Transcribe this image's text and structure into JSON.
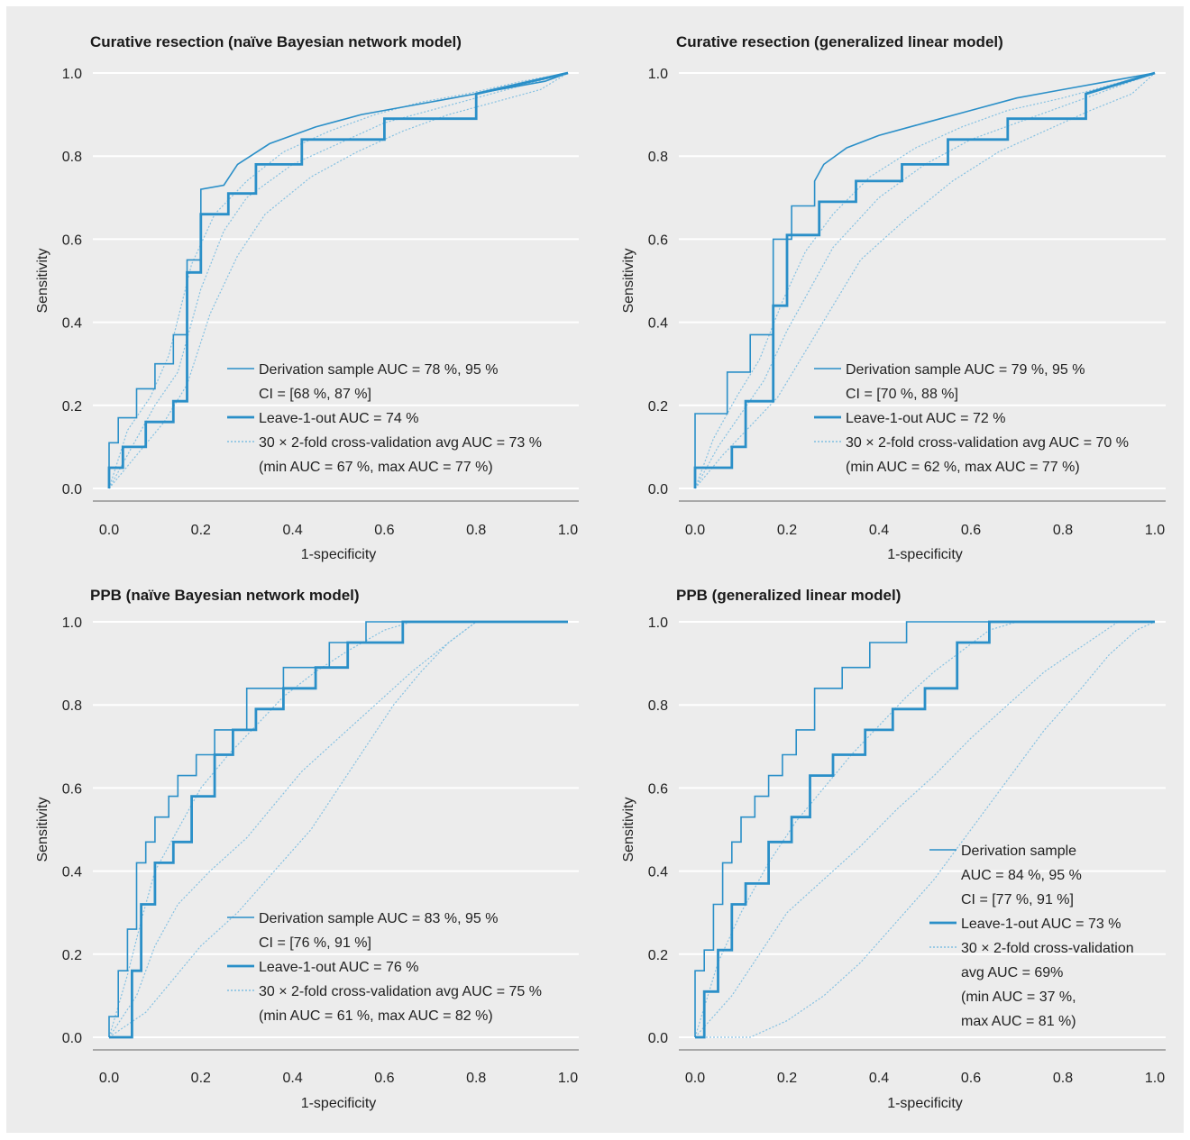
{
  "colors": {
    "background": "#ececec",
    "line": "#2a8fc8",
    "cv_line": "#7fbfe2",
    "grid": "#ffffff",
    "axis": "#a9a9a9"
  },
  "chart_data": [
    {
      "type": "line",
      "title": "Curative resection (naïve Bayesian network model)",
      "xlabel": "1-specificity",
      "ylabel": "Sensitivity",
      "xlim": [
        0,
        1
      ],
      "ylim": [
        0,
        1
      ],
      "xticks": [
        "0.0",
        "0.2",
        "0.4",
        "0.6",
        "0.8",
        "1.0"
      ],
      "yticks": [
        "0.0",
        "0.2",
        "0.4",
        "0.6",
        "0.8",
        "1.0"
      ],
      "grid": true,
      "legend_position": "bottom-right",
      "legend": [
        {
          "style": "thin",
          "lines": [
            "Derivation sample AUC = 78 %, 95 %",
            "CI = [68 %, 87 %]"
          ]
        },
        {
          "style": "thick",
          "lines": [
            "Leave-1-out AUC = 74 %"
          ]
        },
        {
          "style": "dotted",
          "lines": [
            "30 × 2-fold cross-validation avg AUC = 73 %",
            "(min AUC = 67 %, max AUC = 77 %)"
          ]
        }
      ],
      "series": [
        {
          "style": "thin",
          "x": [
            0,
            0,
            0.02,
            0.02,
            0.06,
            0.06,
            0.1,
            0.1,
            0.14,
            0.14,
            0.17,
            0.17,
            0.2,
            0.2,
            0.25,
            0.28,
            0.35,
            0.45,
            0.55,
            0.65,
            0.75,
            0.85,
            0.95,
            1
          ],
          "y": [
            0,
            0.11,
            0.11,
            0.17,
            0.17,
            0.24,
            0.24,
            0.3,
            0.3,
            0.37,
            0.37,
            0.55,
            0.55,
            0.72,
            0.73,
            0.78,
            0.83,
            0.87,
            0.9,
            0.92,
            0.94,
            0.96,
            0.98,
            1
          ]
        },
        {
          "style": "thick",
          "x": [
            0,
            0,
            0.03,
            0.03,
            0.08,
            0.08,
            0.14,
            0.14,
            0.17,
            0.17,
            0.2,
            0.2,
            0.26,
            0.26,
            0.32,
            0.32,
            0.42,
            0.42,
            0.6,
            0.6,
            0.8,
            0.8,
            1
          ],
          "y": [
            0,
            0.05,
            0.05,
            0.1,
            0.1,
            0.16,
            0.16,
            0.21,
            0.21,
            0.52,
            0.52,
            0.66,
            0.66,
            0.71,
            0.71,
            0.78,
            0.78,
            0.84,
            0.84,
            0.89,
            0.89,
            0.95,
            1
          ]
        },
        {
          "style": "dotted",
          "x": [
            0,
            0.05,
            0.1,
            0.15,
            0.2,
            0.25,
            0.3,
            0.4,
            0.5,
            0.6,
            0.7,
            0.8,
            0.9,
            1
          ],
          "y": [
            0,
            0.1,
            0.2,
            0.28,
            0.48,
            0.62,
            0.7,
            0.78,
            0.83,
            0.88,
            0.91,
            0.94,
            0.97,
            1
          ]
        },
        {
          "style": "dotted",
          "x": [
            0,
            0.06,
            0.12,
            0.17,
            0.22,
            0.28,
            0.34,
            0.44,
            0.54,
            0.64,
            0.74,
            0.84,
            0.94,
            1
          ],
          "y": [
            0,
            0.08,
            0.16,
            0.25,
            0.42,
            0.56,
            0.66,
            0.75,
            0.81,
            0.86,
            0.9,
            0.93,
            0.96,
            1
          ]
        },
        {
          "style": "dotted",
          "x": [
            0,
            0.04,
            0.09,
            0.13,
            0.18,
            0.23,
            0.3,
            0.38,
            0.48,
            0.58,
            0.68,
            0.78,
            0.9,
            1
          ],
          "y": [
            0,
            0.14,
            0.22,
            0.32,
            0.54,
            0.66,
            0.74,
            0.81,
            0.86,
            0.9,
            0.93,
            0.95,
            0.98,
            1
          ]
        }
      ]
    },
    {
      "type": "line",
      "title": "Curative resection (generalized linear model)",
      "xlabel": "1-specificity",
      "ylabel": "Sensitivity",
      "xlim": [
        0,
        1
      ],
      "ylim": [
        0,
        1
      ],
      "xticks": [
        "0.0",
        "0.2",
        "0.4",
        "0.6",
        "0.8",
        "1.0"
      ],
      "yticks": [
        "0.0",
        "0.2",
        "0.4",
        "0.6",
        "0.8",
        "1.0"
      ],
      "grid": true,
      "legend_position": "bottom-right",
      "legend": [
        {
          "style": "thin",
          "lines": [
            "Derivation sample AUC = 79 %, 95 %",
            "CI = [70 %, 88 %]"
          ]
        },
        {
          "style": "thick",
          "lines": [
            "Leave-1-out AUC = 72 %"
          ]
        },
        {
          "style": "dotted",
          "lines": [
            "30 × 2-fold cross-validation avg AUC = 70 %",
            "(min AUC = 62 %, max AUC = 77 %)"
          ]
        }
      ],
      "series": [
        {
          "style": "thin",
          "x": [
            0,
            0,
            0.07,
            0.07,
            0.12,
            0.12,
            0.17,
            0.17,
            0.21,
            0.21,
            0.26,
            0.26,
            0.28,
            0.33,
            0.4,
            0.5,
            0.6,
            0.7,
            0.8,
            0.9,
            1
          ],
          "y": [
            0,
            0.18,
            0.18,
            0.28,
            0.28,
            0.37,
            0.37,
            0.6,
            0.6,
            0.68,
            0.68,
            0.74,
            0.78,
            0.82,
            0.85,
            0.88,
            0.91,
            0.94,
            0.96,
            0.98,
            1
          ]
        },
        {
          "style": "thick",
          "x": [
            0,
            0,
            0.08,
            0.08,
            0.11,
            0.11,
            0.17,
            0.17,
            0.2,
            0.2,
            0.27,
            0.27,
            0.35,
            0.35,
            0.45,
            0.45,
            0.55,
            0.55,
            0.68,
            0.68,
            0.85,
            0.85,
            1
          ],
          "y": [
            0,
            0.05,
            0.05,
            0.1,
            0.1,
            0.21,
            0.21,
            0.44,
            0.44,
            0.61,
            0.61,
            0.69,
            0.69,
            0.74,
            0.74,
            0.78,
            0.78,
            0.84,
            0.84,
            0.89,
            0.89,
            0.95,
            1
          ]
        },
        {
          "style": "dotted",
          "x": [
            0,
            0.05,
            0.1,
            0.15,
            0.2,
            0.25,
            0.3,
            0.4,
            0.5,
            0.6,
            0.7,
            0.8,
            0.9,
            1
          ],
          "y": [
            0,
            0.1,
            0.18,
            0.26,
            0.38,
            0.48,
            0.58,
            0.7,
            0.78,
            0.84,
            0.88,
            0.92,
            0.96,
            1
          ]
        },
        {
          "style": "dotted",
          "x": [
            0,
            0.06,
            0.12,
            0.18,
            0.24,
            0.3,
            0.36,
            0.46,
            0.56,
            0.66,
            0.76,
            0.86,
            0.95,
            1
          ],
          "y": [
            0,
            0.08,
            0.15,
            0.22,
            0.33,
            0.44,
            0.55,
            0.65,
            0.74,
            0.81,
            0.86,
            0.91,
            0.95,
            1
          ]
        },
        {
          "style": "dotted",
          "x": [
            0,
            0.04,
            0.09,
            0.14,
            0.19,
            0.24,
            0.3,
            0.38,
            0.48,
            0.58,
            0.68,
            0.8,
            0.9,
            1
          ],
          "y": [
            0,
            0.12,
            0.22,
            0.31,
            0.45,
            0.57,
            0.66,
            0.75,
            0.82,
            0.87,
            0.91,
            0.94,
            0.97,
            1
          ]
        }
      ]
    },
    {
      "type": "line",
      "title": "PPB (naïve Bayesian network model)",
      "xlabel": "1-specificity",
      "ylabel": "Sensitivity",
      "xlim": [
        0,
        1
      ],
      "ylim": [
        0,
        1
      ],
      "xticks": [
        "0.0",
        "0.2",
        "0.4",
        "0.6",
        "0.8",
        "1.0"
      ],
      "yticks": [
        "0.0",
        "0.2",
        "0.4",
        "0.6",
        "0.8",
        "1.0"
      ],
      "grid": true,
      "legend_position": "bottom-right",
      "legend": [
        {
          "style": "thin",
          "lines": [
            "Derivation sample AUC = 83 %, 95 %",
            "CI = [76 %, 91 %]"
          ]
        },
        {
          "style": "thick",
          "lines": [
            "Leave-1-out AUC = 76 %"
          ]
        },
        {
          "style": "dotted",
          "lines": [
            "30 × 2-fold cross-validation avg AUC = 75 %",
            "(min AUC = 61 %, max AUC = 82 %)"
          ]
        }
      ],
      "series": [
        {
          "style": "thin",
          "x": [
            0,
            0,
            0.02,
            0.02,
            0.04,
            0.04,
            0.06,
            0.06,
            0.08,
            0.08,
            0.1,
            0.1,
            0.13,
            0.13,
            0.15,
            0.15,
            0.19,
            0.19,
            0.23,
            0.23,
            0.3,
            0.3,
            0.38,
            0.38,
            0.48,
            0.48,
            0.56,
            0.56,
            1
          ],
          "y": [
            0,
            0.05,
            0.05,
            0.16,
            0.16,
            0.26,
            0.26,
            0.42,
            0.42,
            0.47,
            0.47,
            0.53,
            0.53,
            0.58,
            0.58,
            0.63,
            0.63,
            0.68,
            0.68,
            0.74,
            0.74,
            0.84,
            0.84,
            0.89,
            0.89,
            0.95,
            0.95,
            1,
            1
          ]
        },
        {
          "style": "thick",
          "x": [
            0,
            0.05,
            0.05,
            0.07,
            0.07,
            0.1,
            0.1,
            0.14,
            0.14,
            0.18,
            0.18,
            0.23,
            0.23,
            0.27,
            0.27,
            0.32,
            0.32,
            0.38,
            0.38,
            0.45,
            0.45,
            0.52,
            0.52,
            0.64,
            0.64,
            1
          ],
          "y": [
            0,
            0,
            0.16,
            0.16,
            0.32,
            0.32,
            0.42,
            0.42,
            0.47,
            0.47,
            0.58,
            0.58,
            0.68,
            0.68,
            0.74,
            0.74,
            0.79,
            0.79,
            0.84,
            0.84,
            0.89,
            0.89,
            0.95,
            0.95,
            1,
            1
          ]
        },
        {
          "style": "dotted",
          "x": [
            0,
            0.04,
            0.07,
            0.1,
            0.15,
            0.2,
            0.26,
            0.32,
            0.38,
            0.45,
            0.52,
            0.6,
            0.66,
            1
          ],
          "y": [
            0,
            0.15,
            0.28,
            0.4,
            0.5,
            0.6,
            0.68,
            0.75,
            0.82,
            0.88,
            0.93,
            0.98,
            1,
            1
          ]
        },
        {
          "style": "dotted",
          "x": [
            0,
            0.06,
            0.1,
            0.15,
            0.22,
            0.3,
            0.36,
            0.42,
            0.5,
            0.58,
            0.66,
            0.74,
            0.8,
            1
          ],
          "y": [
            0,
            0.1,
            0.22,
            0.32,
            0.4,
            0.48,
            0.56,
            0.64,
            0.72,
            0.8,
            0.88,
            0.95,
            1,
            1
          ]
        },
        {
          "style": "dotted",
          "x": [
            0,
            0.08,
            0.14,
            0.2,
            0.28,
            0.36,
            0.44,
            0.5,
            0.56,
            0.62,
            0.68,
            0.74,
            0.8,
            1
          ],
          "y": [
            0,
            0.06,
            0.14,
            0.22,
            0.3,
            0.4,
            0.5,
            0.6,
            0.7,
            0.8,
            0.88,
            0.95,
            1,
            1
          ]
        }
      ]
    },
    {
      "type": "line",
      "title": "PPB (generalized linear model)",
      "xlabel": "1-specificity",
      "ylabel": "Sensitivity",
      "xlim": [
        0,
        1
      ],
      "ylim": [
        0,
        1
      ],
      "xticks": [
        "0.0",
        "0.2",
        "0.4",
        "0.6",
        "0.8",
        "1.0"
      ],
      "yticks": [
        "0.0",
        "0.2",
        "0.4",
        "0.6",
        "0.8",
        "1.0"
      ],
      "grid": true,
      "legend_position": "bottom-right",
      "legend": [
        {
          "style": "thin",
          "lines": [
            "Derivation sample",
            "AUC = 84 %, 95 %",
            "CI = [77 %, 91 %]"
          ]
        },
        {
          "style": "thick",
          "lines": [
            "Leave-1-out AUC = 73 %"
          ]
        },
        {
          "style": "dotted",
          "lines": [
            "30 × 2-fold cross-validation",
            "avg AUC = 69%",
            "(min AUC = 37 %,",
            "max AUC = 81 %)"
          ]
        }
      ],
      "series": [
        {
          "style": "thin",
          "x": [
            0,
            0,
            0.02,
            0.02,
            0.04,
            0.04,
            0.06,
            0.06,
            0.08,
            0.08,
            0.1,
            0.1,
            0.13,
            0.13,
            0.16,
            0.16,
            0.19,
            0.19,
            0.22,
            0.22,
            0.26,
            0.26,
            0.32,
            0.32,
            0.38,
            0.38,
            0.46,
            0.46,
            1
          ],
          "y": [
            0,
            0.16,
            0.16,
            0.21,
            0.21,
            0.32,
            0.32,
            0.42,
            0.42,
            0.47,
            0.47,
            0.53,
            0.53,
            0.58,
            0.58,
            0.63,
            0.63,
            0.68,
            0.68,
            0.74,
            0.74,
            0.84,
            0.84,
            0.89,
            0.89,
            0.95,
            0.95,
            1,
            1
          ]
        },
        {
          "style": "thick",
          "x": [
            0,
            0.02,
            0.02,
            0.05,
            0.05,
            0.08,
            0.08,
            0.11,
            0.11,
            0.16,
            0.16,
            0.21,
            0.21,
            0.25,
            0.25,
            0.3,
            0.3,
            0.37,
            0.37,
            0.43,
            0.43,
            0.5,
            0.5,
            0.57,
            0.57,
            0.64,
            0.64,
            1
          ],
          "y": [
            0,
            0,
            0.11,
            0.11,
            0.21,
            0.21,
            0.32,
            0.32,
            0.37,
            0.37,
            0.47,
            0.47,
            0.53,
            0.53,
            0.63,
            0.63,
            0.68,
            0.68,
            0.74,
            0.74,
            0.79,
            0.79,
            0.84,
            0.84,
            0.95,
            0.95,
            1,
            1
          ]
        },
        {
          "style": "dotted",
          "x": [
            0,
            0.05,
            0.1,
            0.16,
            0.22,
            0.28,
            0.34,
            0.4,
            0.46,
            0.52,
            0.58,
            0.64,
            0.7,
            1
          ],
          "y": [
            0,
            0.18,
            0.3,
            0.42,
            0.52,
            0.6,
            0.68,
            0.75,
            0.82,
            0.88,
            0.93,
            0.98,
            1,
            1
          ]
        },
        {
          "style": "dotted",
          "x": [
            0,
            0.08,
            0.14,
            0.2,
            0.28,
            0.36,
            0.44,
            0.52,
            0.6,
            0.68,
            0.76,
            0.84,
            0.92,
            1
          ],
          "y": [
            0,
            0.1,
            0.2,
            0.3,
            0.38,
            0.46,
            0.55,
            0.63,
            0.72,
            0.8,
            0.88,
            0.94,
            1,
            1
          ]
        },
        {
          "style": "dotted",
          "x": [
            0,
            0.12,
            0.2,
            0.28,
            0.36,
            0.44,
            0.52,
            0.6,
            0.68,
            0.76,
            0.84,
            0.9,
            0.96,
            1
          ],
          "y": [
            0,
            0,
            0.04,
            0.1,
            0.18,
            0.28,
            0.38,
            0.5,
            0.62,
            0.74,
            0.84,
            0.92,
            0.98,
            1
          ]
        }
      ]
    }
  ]
}
